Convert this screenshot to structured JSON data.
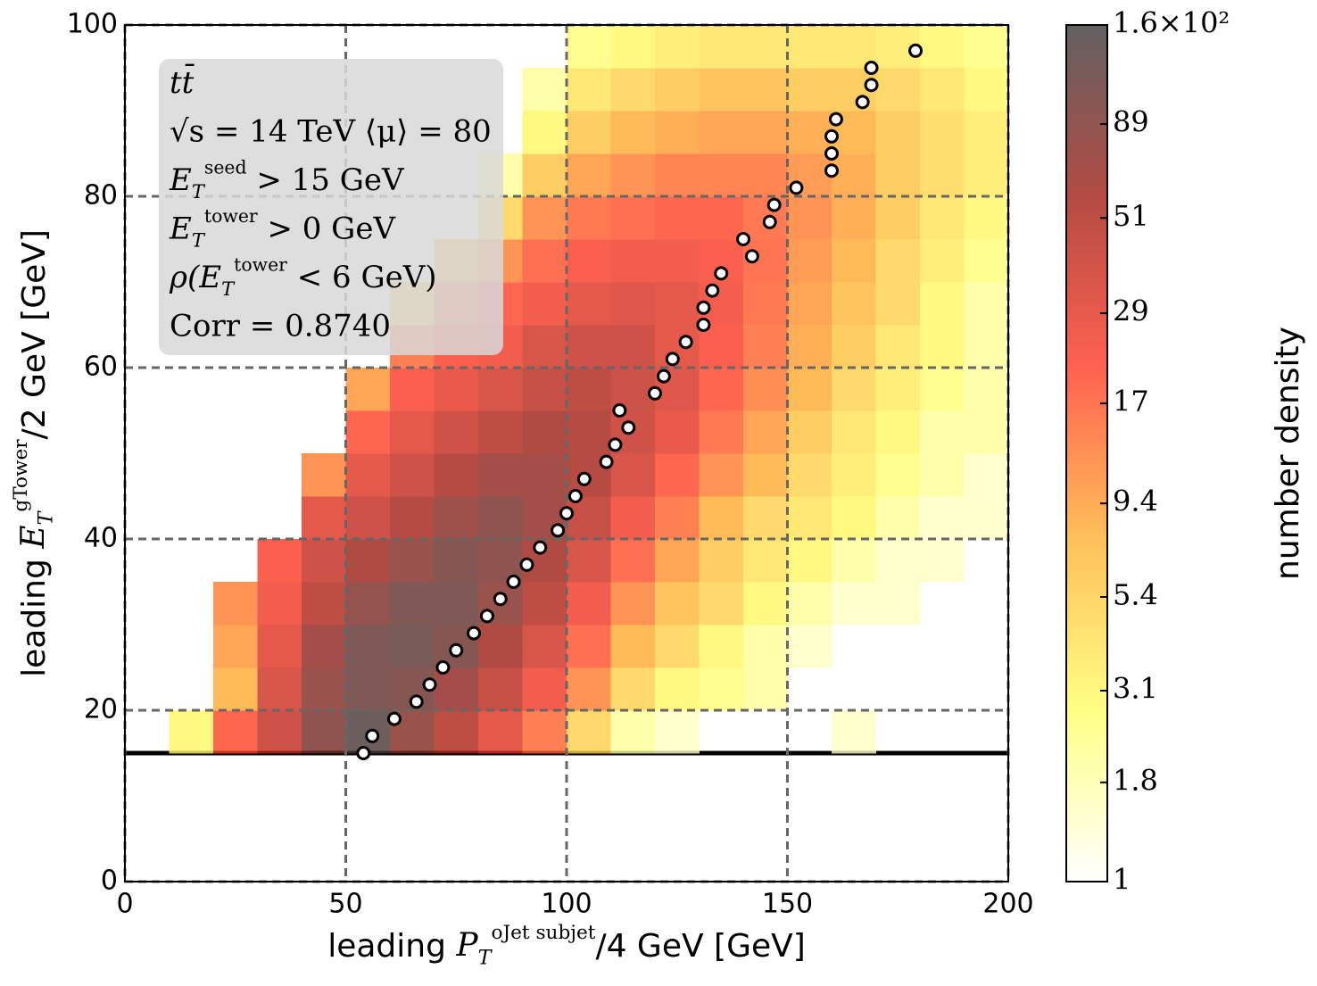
{
  "chart_data": {
    "type": "heatmap",
    "xlabel": [
      [
        "leading ",
        "text"
      ],
      [
        "P",
        "math"
      ],
      [
        "T",
        "sub"
      ],
      [
        "oJet subjet",
        "sup"
      ],
      [
        "/4 GeV [GeV]",
        "text"
      ]
    ],
    "ylabel": [
      [
        "leading ",
        "text"
      ],
      [
        "E",
        "math"
      ],
      [
        "T",
        "sub"
      ],
      [
        "gTower",
        "sup"
      ],
      [
        "/2 GeV [GeV]",
        "text"
      ]
    ],
    "colorbar_label": "number density",
    "annotation": [
      [
        [
          "tt̄",
          "math"
        ]
      ],
      [
        [
          "√s = 14 TeV ⟨μ⟩ = 80",
          "serif"
        ]
      ],
      [
        [
          "E",
          "math"
        ],
        [
          "T",
          "sub"
        ],
        [
          "seed",
          "sup"
        ],
        [
          " > 15 GeV",
          "serif"
        ]
      ],
      [
        [
          "E",
          "math"
        ],
        [
          "T",
          "sub"
        ],
        [
          "tower",
          "sup"
        ],
        [
          " > 0 GeV",
          "serif"
        ]
      ],
      [
        [
          "ρ(",
          "math"
        ],
        [
          "E",
          "math"
        ],
        [
          "T",
          "sub"
        ],
        [
          "tower",
          "sup"
        ],
        [
          " < 6 GeV)",
          "serif"
        ]
      ],
      [
        [
          "Corr = 0.8740",
          "serif"
        ]
      ]
    ],
    "xlim": [
      0,
      200
    ],
    "ylim": [
      0,
      100
    ],
    "xticks": [
      0,
      50,
      100,
      150,
      200
    ],
    "yticks": [
      0,
      20,
      40,
      60,
      80,
      100
    ],
    "grid": true,
    "clim": [
      1,
      160
    ],
    "log_color": true,
    "cticks": [
      1,
      1.8,
      3.1,
      5.4,
      9.4,
      17,
      29,
      51,
      89,
      {
        "value": 160,
        "label": "1.6×10²"
      }
    ],
    "colormap": [
      "#ffffff",
      "#ffff66",
      "#ffb030",
      "#ff3a24",
      "#a01e14",
      "#3a3a3a"
    ],
    "threshold": 15,
    "xbins": [
      0,
      10,
      20,
      30,
      40,
      50,
      60,
      70,
      80,
      90,
      100,
      110,
      120,
      130,
      140,
      150,
      160,
      170,
      180,
      190,
      200
    ],
    "ybins": [
      0,
      5,
      10,
      15,
      20,
      25,
      30,
      35,
      40,
      45,
      50,
      55,
      60,
      65,
      70,
      75,
      80,
      85,
      90,
      95,
      100
    ],
    "z": [
      [
        null,
        null,
        null,
        null,
        null,
        null,
        null,
        null,
        null,
        null,
        null,
        null,
        null,
        null,
        null,
        null,
        null,
        null,
        null,
        null
      ],
      [
        null,
        null,
        null,
        null,
        null,
        null,
        null,
        null,
        null,
        null,
        null,
        null,
        null,
        null,
        null,
        null,
        null,
        null,
        null,
        null
      ],
      [
        null,
        null,
        null,
        null,
        null,
        null,
        null,
        null,
        null,
        null,
        null,
        null,
        null,
        null,
        null,
        null,
        null,
        null,
        null,
        null
      ],
      [
        null,
        3,
        20,
        40,
        90,
        140,
        80,
        50,
        30,
        15,
        5,
        2,
        1.5,
        null,
        null,
        null,
        1.5,
        null,
        null,
        null
      ],
      [
        null,
        null,
        8,
        35,
        80,
        110,
        100,
        70,
        45,
        25,
        12,
        5,
        3,
        2.5,
        2,
        null,
        null,
        null,
        null,
        null
      ],
      [
        null,
        null,
        10,
        30,
        70,
        110,
        120,
        100,
        60,
        35,
        18,
        8,
        5,
        3,
        2,
        1.5,
        null,
        null,
        null,
        null
      ],
      [
        null,
        null,
        12,
        25,
        50,
        85,
        110,
        110,
        80,
        50,
        25,
        12,
        7,
        5,
        3,
        2,
        1.5,
        1.5,
        null,
        null
      ],
      [
        null,
        null,
        null,
        22,
        40,
        60,
        80,
        100,
        90,
        60,
        35,
        18,
        10,
        6,
        4,
        3,
        2,
        1.5,
        1.5,
        null
      ],
      [
        null,
        null,
        null,
        null,
        30,
        40,
        55,
        75,
        90,
        70,
        45,
        25,
        15,
        8,
        5,
        4,
        3,
        2,
        1.5,
        1.5
      ],
      [
        null,
        null,
        null,
        null,
        12,
        30,
        40,
        55,
        70,
        70,
        55,
        35,
        20,
        12,
        8,
        5,
        3.5,
        2.5,
        2,
        1.5
      ],
      [
        null,
        null,
        null,
        null,
        null,
        20,
        30,
        40,
        50,
        60,
        55,
        40,
        28,
        16,
        10,
        6,
        4,
        3,
        2,
        2
      ],
      [
        null,
        null,
        null,
        null,
        null,
        10,
        22,
        28,
        35,
        45,
        50,
        42,
        32,
        20,
        13,
        8,
        5,
        3.5,
        2.5,
        2
      ],
      [
        null,
        null,
        null,
        null,
        null,
        null,
        15,
        22,
        25,
        35,
        40,
        40,
        30,
        22,
        15,
        9,
        6,
        4,
        3,
        2
      ],
      [
        null,
        null,
        null,
        null,
        null,
        null,
        6,
        15,
        20,
        25,
        30,
        32,
        30,
        24,
        16,
        10,
        7,
        5,
        3,
        2
      ],
      [
        null,
        null,
        null,
        null,
        null,
        null,
        null,
        8,
        12,
        18,
        22,
        25,
        25,
        22,
        17,
        11,
        8,
        5,
        3.5,
        2.5
      ],
      [
        null,
        null,
        null,
        null,
        null,
        null,
        null,
        null,
        5,
        12,
        16,
        18,
        20,
        20,
        16,
        12,
        9,
        6,
        4,
        3
      ],
      [
        null,
        null,
        null,
        null,
        null,
        null,
        null,
        null,
        2,
        6,
        10,
        12,
        14,
        14,
        14,
        11,
        9,
        6,
        4.5,
        3.5
      ],
      [
        null,
        null,
        null,
        null,
        null,
        null,
        null,
        null,
        null,
        3,
        6,
        8,
        9,
        10,
        10,
        9,
        8,
        6,
        4.5,
        3.5
      ],
      [
        null,
        null,
        null,
        null,
        null,
        null,
        null,
        null,
        null,
        2,
        4,
        5,
        6,
        7,
        7,
        6,
        6,
        5,
        4,
        3
      ],
      [
        null,
        null,
        null,
        null,
        null,
        null,
        null,
        null,
        null,
        null,
        2.5,
        3,
        3.5,
        4,
        4,
        4,
        4,
        3.5,
        3,
        2.5
      ]
    ],
    "profile": {
      "type": "scatter",
      "x": [
        54,
        56,
        61,
        66,
        69,
        72,
        75,
        79,
        82,
        85,
        88,
        91,
        94,
        98,
        100,
        102,
        104,
        109,
        111,
        114,
        112,
        120,
        122,
        124,
        127,
        131,
        131,
        133,
        135,
        142,
        140,
        146,
        147,
        152,
        160,
        160,
        160,
        161,
        167,
        169,
        169,
        179
      ],
      "y": [
        15,
        17,
        19,
        21,
        23,
        25,
        27,
        29,
        31,
        33,
        35,
        37,
        39,
        41,
        43,
        45,
        47,
        49,
        51,
        53,
        55,
        57,
        59,
        61,
        63,
        65,
        67,
        69,
        71,
        73,
        75,
        77,
        79,
        81,
        83,
        85,
        87,
        89,
        91,
        93,
        95,
        97
      ]
    }
  }
}
